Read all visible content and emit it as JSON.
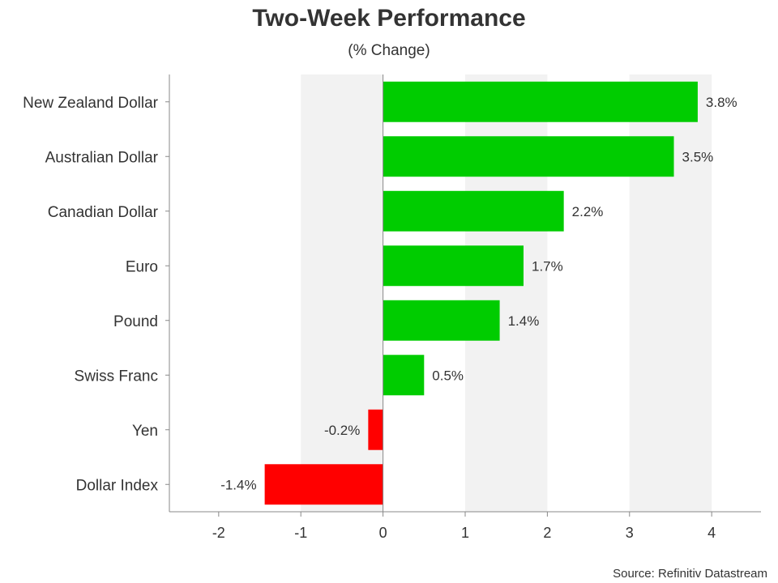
{
  "chart_data": {
    "type": "bar",
    "orientation": "horizontal",
    "title": "Two-Week Performance",
    "subtitle": "(% Change)",
    "categories": [
      "New Zealand Dollar",
      "Australian Dollar",
      "Canadian Dollar",
      "Euro",
      "Pound",
      "Swiss Franc",
      "Yen",
      "Dollar Index"
    ],
    "values": [
      3.83,
      3.54,
      2.2,
      1.71,
      1.42,
      0.5,
      -0.18,
      -1.44
    ],
    "value_labels": [
      "3.8%",
      "3.5%",
      "2.2%",
      "1.7%",
      "1.4%",
      "0.5%",
      "-0.2%",
      "-1.4%"
    ],
    "xlim": [
      -2.6,
      4.6
    ],
    "xticks": [
      -2,
      -1,
      0,
      1,
      2,
      3,
      4
    ],
    "xtick_labels": [
      "-2",
      "-1",
      "0",
      "1",
      "2",
      "3",
      "4"
    ],
    "xlabel": "",
    "ylabel": "",
    "grid": "alternating vertical bands",
    "legend": "none",
    "colors": {
      "positive": "#00cc00",
      "negative": "#ff0000",
      "band": "#f2f2f2",
      "axis": "#888888"
    },
    "source": "Source: Refinitiv Datastream"
  }
}
